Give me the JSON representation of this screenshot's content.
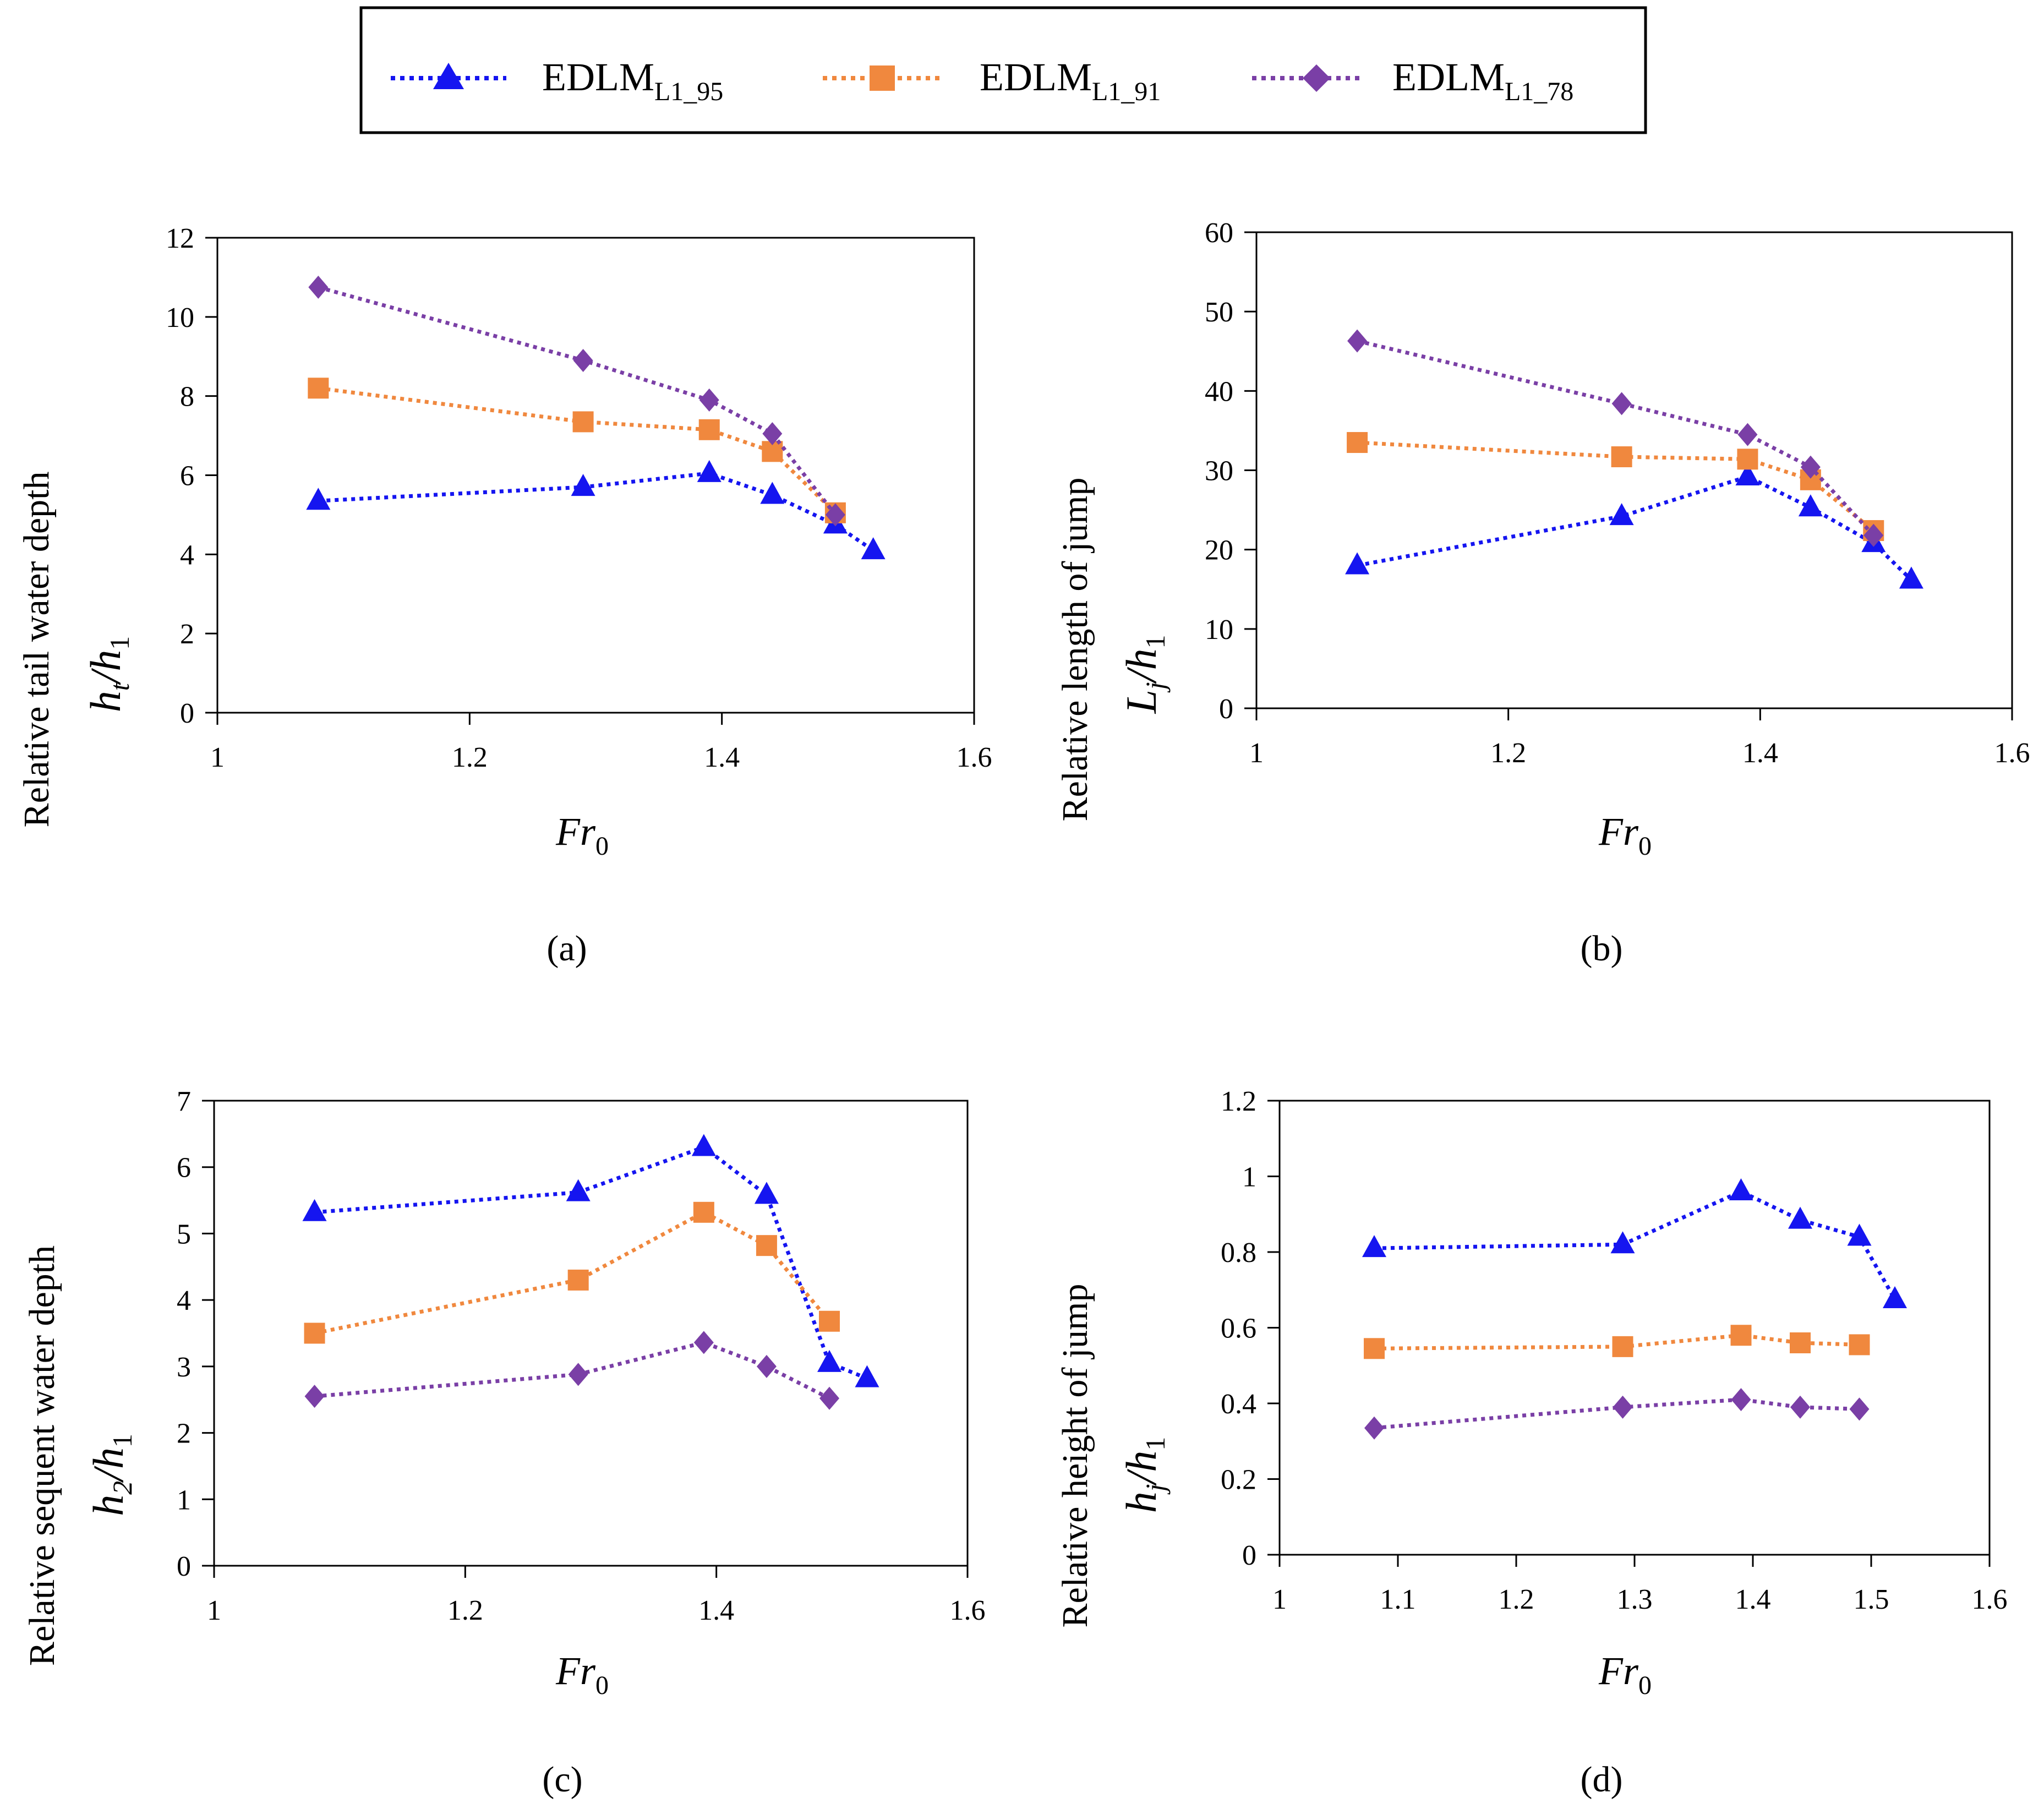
{
  "legend": {
    "entries": [
      {
        "key": "L1_95",
        "base": "EDLM",
        "sub": "L1_95",
        "color": "#1515f0",
        "marker": "triangle"
      },
      {
        "key": "L1_91",
        "base": "EDLM",
        "sub": "L1_91",
        "color": "#f0883e",
        "marker": "square"
      },
      {
        "key": "L1_78",
        "base": "EDLM",
        "sub": "L1_78",
        "color": "#7a3fa6",
        "marker": "diamond"
      }
    ]
  },
  "chart_data": [
    {
      "type": "line",
      "panel_label": "(a)",
      "ylabel_text": "Relative tail water depth",
      "ylabel_math": {
        "num": "h",
        "num_sub": "t",
        "den": "h",
        "den_sub": "1"
      },
      "xlabel": {
        "base": "Fr",
        "sub": "0"
      },
      "xlim": [
        1,
        1.6
      ],
      "ylim": [
        0,
        12
      ],
      "xticks": [
        "1",
        "1.2",
        "1.4",
        "1.6"
      ],
      "xtick_values": [
        1,
        1.2,
        1.4,
        1.6
      ],
      "yticks": [
        "0",
        "2",
        "4",
        "6",
        "8",
        "10",
        "12"
      ],
      "ytick_values": [
        0,
        2,
        4,
        6,
        8,
        10,
        12
      ],
      "series": [
        {
          "name": "EDLM L1_95",
          "x": [
            1.08,
            1.29,
            1.39,
            1.44,
            1.49,
            1.52
          ],
          "y": [
            5.35,
            5.7,
            6.05,
            5.5,
            4.75,
            4.1
          ]
        },
        {
          "name": "EDLM L1_91",
          "x": [
            1.08,
            1.29,
            1.39,
            1.44,
            1.49
          ],
          "y": [
            8.2,
            7.35,
            7.15,
            6.6,
            5.05
          ]
        },
        {
          "name": "EDLM L1_78",
          "x": [
            1.08,
            1.29,
            1.39,
            1.44,
            1.49
          ],
          "y": [
            10.75,
            8.9,
            7.9,
            7.05,
            5.0
          ]
        }
      ]
    },
    {
      "type": "line",
      "panel_label": "(b)",
      "ylabel_text": "Relative length of jump",
      "ylabel_math": {
        "num": "L",
        "num_sub": "j",
        "den": "h",
        "den_sub": "1"
      },
      "xlabel": {
        "base": "Fr",
        "sub": "0"
      },
      "xlim": [
        1,
        1.6
      ],
      "ylim": [
        0,
        60
      ],
      "xticks": [
        "1",
        "1.2",
        "1.4",
        "1.6"
      ],
      "xtick_values": [
        1,
        1.2,
        1.4,
        1.6
      ],
      "yticks": [
        "0",
        "10",
        "20",
        "30",
        "40",
        "50",
        "60"
      ],
      "ytick_values": [
        0,
        10,
        20,
        30,
        40,
        50,
        60
      ],
      "series": [
        {
          "name": "EDLM L1_95",
          "x": [
            1.08,
            1.29,
            1.39,
            1.44,
            1.49,
            1.52
          ],
          "y": [
            18,
            24.2,
            29.2,
            25.3,
            20.8,
            16.2
          ]
        },
        {
          "name": "EDLM L1_91",
          "x": [
            1.08,
            1.29,
            1.39,
            1.44,
            1.49
          ],
          "y": [
            33.5,
            31.7,
            31.4,
            28.8,
            22.4
          ]
        },
        {
          "name": "EDLM L1_78",
          "x": [
            1.08,
            1.29,
            1.39,
            1.44,
            1.49
          ],
          "y": [
            46.3,
            38.4,
            34.5,
            30.4,
            21.8
          ]
        }
      ]
    },
    {
      "type": "line",
      "panel_label": "(c)",
      "ylabel_text": "Relative sequent water depth",
      "ylabel_math": {
        "num": "h",
        "num_sub": "2",
        "den": "h",
        "den_sub": "1"
      },
      "xlabel": {
        "base": "Fr",
        "sub": "0"
      },
      "xlim": [
        1,
        1.6
      ],
      "ylim": [
        0,
        7
      ],
      "xticks": [
        "1",
        "1.2",
        "1.4",
        "1.6"
      ],
      "xtick_values": [
        1,
        1.2,
        1.4,
        1.6
      ],
      "yticks": [
        "0",
        "1",
        "2",
        "3",
        "4",
        "5",
        "6",
        "7"
      ],
      "ytick_values": [
        0,
        1,
        2,
        3,
        4,
        5,
        6,
        7
      ],
      "series": [
        {
          "name": "EDLM L1_95",
          "x": [
            1.08,
            1.29,
            1.39,
            1.44,
            1.49,
            1.52
          ],
          "y": [
            5.32,
            5.62,
            6.3,
            5.58,
            3.05,
            2.82
          ]
        },
        {
          "name": "EDLM L1_91",
          "x": [
            1.08,
            1.29,
            1.39,
            1.44,
            1.49
          ],
          "y": [
            3.5,
            4.3,
            5.32,
            4.82,
            3.68
          ]
        },
        {
          "name": "EDLM L1_78",
          "x": [
            1.08,
            1.29,
            1.39,
            1.44,
            1.49
          ],
          "y": [
            2.55,
            2.88,
            3.36,
            3.0,
            2.52
          ]
        }
      ]
    },
    {
      "type": "line",
      "panel_label": "(d)",
      "ylabel_text": "Relative height of jump",
      "ylabel_math": {
        "num": "h",
        "num_sub": "j",
        "den": "h",
        "den_sub": "1"
      },
      "xlabel": {
        "base": "Fr",
        "sub": "0"
      },
      "xlim": [
        1,
        1.6
      ],
      "ylim": [
        0,
        1.2
      ],
      "xticks": [
        "1",
        "1.1",
        "1.2",
        "1.3",
        "1.4",
        "1.5",
        "1.6"
      ],
      "xtick_values": [
        1,
        1.1,
        1.2,
        1.3,
        1.4,
        1.5,
        1.6
      ],
      "yticks": [
        "0",
        "0.2",
        "0.4",
        "0.6",
        "0.8",
        "1",
        "1.2"
      ],
      "ytick_values": [
        0,
        0.2,
        0.4,
        0.6,
        0.8,
        1.0,
        1.2
      ],
      "series": [
        {
          "name": "EDLM L1_95",
          "x": [
            1.08,
            1.29,
            1.39,
            1.44,
            1.49,
            1.52
          ],
          "y": [
            0.81,
            0.82,
            0.96,
            0.885,
            0.84,
            0.675
          ]
        },
        {
          "name": "EDLM L1_91",
          "x": [
            1.08,
            1.29,
            1.39,
            1.44,
            1.49
          ],
          "y": [
            0.545,
            0.55,
            0.58,
            0.56,
            0.555
          ]
        },
        {
          "name": "EDLM L1_78",
          "x": [
            1.08,
            1.29,
            1.39,
            1.44,
            1.49
          ],
          "y": [
            0.335,
            0.39,
            0.41,
            0.39,
            0.385
          ]
        }
      ]
    }
  ]
}
